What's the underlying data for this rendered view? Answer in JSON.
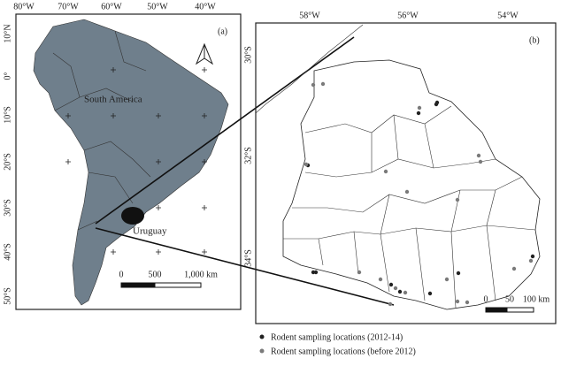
{
  "panel_a": {
    "label": "(a)",
    "top_labels": [
      "80°W",
      "70°W",
      "60°W",
      "50°W",
      "40°W"
    ],
    "left_labels": [
      "10°N",
      "0°",
      "10°S",
      "20°S",
      "30°S",
      "40°S",
      "50°S"
    ],
    "continent_label": "South America",
    "country_label": "Uruguay",
    "scale_labels": [
      "0",
      "500",
      "1,000 km"
    ]
  },
  "panel_b": {
    "label": "(b)",
    "top_labels": [
      "58°W",
      "56°W",
      "54°W"
    ],
    "left_labels": [
      "30°S",
      "32°S",
      "34°S"
    ],
    "scale_labels": [
      "0",
      "50",
      "100 km"
    ]
  },
  "legend": [
    "Rodent sampling locations (2012-14)",
    "Rodent sampling locations (before 2012)"
  ]
}
